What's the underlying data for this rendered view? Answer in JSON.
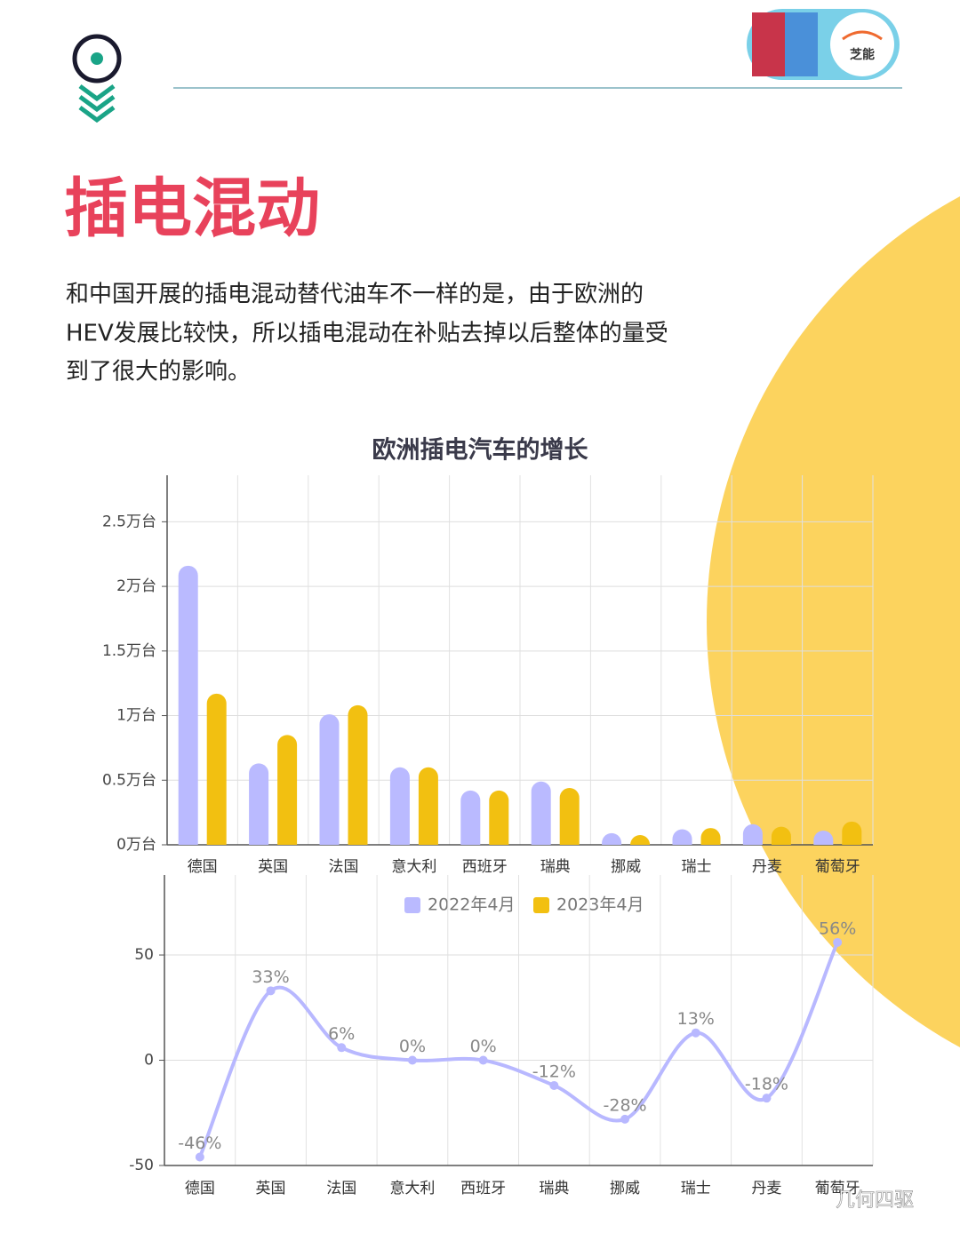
{
  "title": "插电混动",
  "paragraph": [
    "和中国开展的插电混动替代油车不一样的是，由于欧洲的",
    "HEV发展比较快，所以插电混动在补贴去掉以后整体的量受",
    "到了很大的影响。"
  ],
  "badge": "芝能",
  "watermark": "几何四驱",
  "chart_data": [
    {
      "type": "bar",
      "title": "欧洲插电汽车的增长",
      "categories": [
        "德国",
        "英国",
        "法国",
        "意大利",
        "西班牙",
        "瑞典",
        "挪威",
        "瑞士",
        "丹麦",
        "葡萄牙"
      ],
      "series": [
        {
          "name": "2022年4月",
          "color": "#babaff",
          "values": [
            2.16,
            0.63,
            1.01,
            0.6,
            0.42,
            0.49,
            0.09,
            0.12,
            0.16,
            0.11
          ]
        },
        {
          "name": "2023年4月",
          "color": "#f2c011",
          "values": [
            1.17,
            0.85,
            1.08,
            0.6,
            0.42,
            0.44,
            0.06,
            0.13,
            0.14,
            0.18
          ]
        }
      ],
      "ylim": [
        0,
        2.86
      ],
      "yticks": [
        {
          "value": 0,
          "label": "0万台"
        },
        {
          "value": 0.5,
          "label": "0.5万台"
        },
        {
          "value": 1,
          "label": "1万台"
        },
        {
          "value": 1.5,
          "label": "1.5万台"
        },
        {
          "value": 2,
          "label": "2万台"
        },
        {
          "value": 2.5,
          "label": "2.5万台"
        }
      ],
      "grid": true
    },
    {
      "type": "line",
      "categories": [
        "德国",
        "英国",
        "法国",
        "意大利",
        "西班牙",
        "瑞典",
        "挪威",
        "瑞士",
        "丹麦",
        "葡萄牙"
      ],
      "values": [
        -46,
        33,
        6,
        0,
        0,
        -12,
        -28,
        13,
        -18,
        56
      ],
      "value_labels": [
        "-46%",
        "33%",
        "6%",
        "0%",
        "0%",
        "-12%",
        "-28%",
        "13%",
        "-18%",
        "56%"
      ],
      "color": "#b8b8ff",
      "ylim": [
        -50,
        88
      ],
      "yticks": [
        -50,
        0,
        50
      ],
      "grid": true
    }
  ]
}
